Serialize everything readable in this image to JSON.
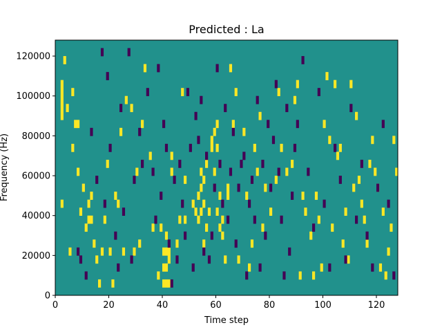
{
  "chart_data": {
    "type": "heatmap",
    "title": "Predicted : La",
    "xlabel": "Time step",
    "ylabel": "Frequency (Hz)",
    "xlim": [
      0,
      128
    ],
    "ylim": [
      0,
      128000
    ],
    "xticks": [
      "0",
      "20",
      "40",
      "60",
      "80",
      "100",
      "120"
    ],
    "yticks": [
      "0",
      "20000",
      "40000",
      "60000",
      "80000",
      "100000",
      "120000"
    ],
    "grid": false,
    "legend": "none",
    "colors": {
      "background": "#21918c",
      "high": "#fde725",
      "low": "#440154"
    },
    "cell_size": {
      "time": 1,
      "freq": 4000
    },
    "yellow_cells": [
      [
        2,
        104
      ],
      [
        2,
        100
      ],
      [
        2,
        96
      ],
      [
        2,
        92
      ],
      [
        2,
        88
      ],
      [
        2,
        44
      ],
      [
        3,
        116
      ],
      [
        4,
        92
      ],
      [
        5,
        20
      ],
      [
        6,
        100
      ],
      [
        6,
        72
      ],
      [
        7,
        84
      ],
      [
        8,
        84
      ],
      [
        8,
        60
      ],
      [
        9,
        40
      ],
      [
        10,
        52
      ],
      [
        11,
        32
      ],
      [
        12,
        36
      ],
      [
        12,
        44
      ],
      [
        13,
        48
      ],
      [
        13,
        36
      ],
      [
        14,
        24
      ],
      [
        15,
        16
      ],
      [
        16,
        4
      ],
      [
        17,
        20
      ],
      [
        18,
        36
      ],
      [
        19,
        64
      ],
      [
        20,
        20
      ],
      [
        21,
        4
      ],
      [
        22,
        48
      ],
      [
        23,
        44
      ],
      [
        24,
        80
      ],
      [
        25,
        20
      ],
      [
        26,
        96
      ],
      [
        28,
        92
      ],
      [
        29,
        20
      ],
      [
        30,
        60
      ],
      [
        31,
        24
      ],
      [
        32,
        84
      ],
      [
        33,
        112
      ],
      [
        35,
        68
      ],
      [
        36,
        32
      ],
      [
        38,
        8
      ],
      [
        39,
        32
      ],
      [
        40,
        4
      ],
      [
        40,
        12
      ],
      [
        40,
        20
      ],
      [
        41,
        4
      ],
      [
        41,
        12
      ],
      [
        41,
        20
      ],
      [
        41,
        28
      ],
      [
        42,
        4
      ],
      [
        42,
        16
      ],
      [
        42,
        20
      ],
      [
        43,
        60
      ],
      [
        43,
        68
      ],
      [
        45,
        24
      ],
      [
        46,
        36
      ],
      [
        47,
        100
      ],
      [
        48,
        56
      ],
      [
        48,
        36
      ],
      [
        51,
        44
      ],
      [
        52,
        40
      ],
      [
        53,
        36
      ],
      [
        53,
        48
      ],
      [
        54,
        40
      ],
      [
        54,
        52
      ],
      [
        54,
        60
      ],
      [
        55,
        24
      ],
      [
        55,
        44
      ],
      [
        55,
        56
      ],
      [
        56,
        32
      ],
      [
        56,
        64
      ],
      [
        57,
        40
      ],
      [
        58,
        72
      ],
      [
        58,
        76
      ],
      [
        59,
        60
      ],
      [
        59,
        80
      ],
      [
        60,
        84
      ],
      [
        60,
        72
      ],
      [
        60,
        40
      ],
      [
        61,
        48
      ],
      [
        61,
        32
      ],
      [
        62,
        28
      ],
      [
        62,
        36
      ],
      [
        63,
        16
      ],
      [
        64,
        48
      ],
      [
        64,
        52
      ],
      [
        65,
        112
      ],
      [
        66,
        84
      ],
      [
        67,
        100
      ],
      [
        68,
        16
      ],
      [
        70,
        80
      ],
      [
        71,
        48
      ],
      [
        72,
        12
      ],
      [
        73,
        24
      ],
      [
        74,
        72
      ],
      [
        75,
        60
      ],
      [
        76,
        88
      ],
      [
        77,
        32
      ],
      [
        78,
        52
      ],
      [
        80,
        40
      ],
      [
        82,
        56
      ],
      [
        83,
        100
      ],
      [
        84,
        72
      ],
      [
        86,
        60
      ],
      [
        88,
        64
      ],
      [
        89,
        96
      ],
      [
        90,
        104
      ],
      [
        91,
        8
      ],
      [
        92,
        48
      ],
      [
        93,
        40
      ],
      [
        95,
        28
      ],
      [
        96,
        8
      ],
      [
        97,
        48
      ],
      [
        98,
        36
      ],
      [
        99,
        12
      ],
      [
        100,
        84
      ],
      [
        101,
        108
      ],
      [
        102,
        76
      ],
      [
        103,
        32
      ],
      [
        104,
        104
      ],
      [
        105,
        68
      ],
      [
        106,
        72
      ],
      [
        107,
        24
      ],
      [
        108,
        40
      ],
      [
        109,
        16
      ],
      [
        110,
        104
      ],
      [
        111,
        52
      ],
      [
        112,
        88
      ],
      [
        113,
        56
      ],
      [
        114,
        44
      ],
      [
        115,
        36
      ],
      [
        116,
        24
      ],
      [
        117,
        64
      ],
      [
        118,
        76
      ],
      [
        119,
        60
      ],
      [
        120,
        52
      ],
      [
        121,
        12
      ],
      [
        122,
        40
      ],
      [
        123,
        8
      ],
      [
        124,
        20
      ],
      [
        125,
        32
      ],
      [
        126,
        76
      ],
      [
        127,
        60
      ]
    ],
    "purple_cells": [
      [
        8,
        20
      ],
      [
        9,
        16
      ],
      [
        11,
        8
      ],
      [
        13,
        80
      ],
      [
        15,
        56
      ],
      [
        17,
        120
      ],
      [
        18,
        44
      ],
      [
        19,
        108
      ],
      [
        20,
        72
      ],
      [
        22,
        28
      ],
      [
        23,
        12
      ],
      [
        24,
        92
      ],
      [
        25,
        40
      ],
      [
        27,
        120
      ],
      [
        28,
        16
      ],
      [
        29,
        56
      ],
      [
        31,
        80
      ],
      [
        32,
        64
      ],
      [
        34,
        100
      ],
      [
        36,
        60
      ],
      [
        37,
        36
      ],
      [
        38,
        112
      ],
      [
        39,
        48
      ],
      [
        40,
        84
      ],
      [
        41,
        72
      ],
      [
        42,
        24
      ],
      [
        43,
        4
      ],
      [
        44,
        56
      ],
      [
        45,
        16
      ],
      [
        46,
        64
      ],
      [
        47,
        44
      ],
      [
        48,
        28
      ],
      [
        49,
        100
      ],
      [
        50,
        72
      ],
      [
        51,
        12
      ],
      [
        52,
        88
      ],
      [
        53,
        76
      ],
      [
        54,
        96
      ],
      [
        55,
        20
      ],
      [
        56,
        68
      ],
      [
        57,
        16
      ],
      [
        58,
        28
      ],
      [
        59,
        52
      ],
      [
        60,
        112
      ],
      [
        61,
        64
      ],
      [
        62,
        44
      ],
      [
        63,
        92
      ],
      [
        64,
        36
      ],
      [
        65,
        60
      ],
      [
        66,
        80
      ],
      [
        67,
        24
      ],
      [
        68,
        52
      ],
      [
        69,
        64
      ],
      [
        70,
        68
      ],
      [
        71,
        8
      ],
      [
        72,
        44
      ],
      [
        73,
        56
      ],
      [
        74,
        36
      ],
      [
        75,
        96
      ],
      [
        76,
        12
      ],
      [
        77,
        64
      ],
      [
        78,
        28
      ],
      [
        79,
        84
      ],
      [
        80,
        52
      ],
      [
        81,
        76
      ],
      [
        82,
        104
      ],
      [
        83,
        60
      ],
      [
        84,
        36
      ],
      [
        85,
        8
      ],
      [
        86,
        92
      ],
      [
        87,
        20
      ],
      [
        88,
        48
      ],
      [
        89,
        72
      ],
      [
        90,
        84
      ],
      [
        92,
        116
      ],
      [
        94,
        60
      ],
      [
        96,
        32
      ],
      [
        98,
        100
      ],
      [
        100,
        44
      ],
      [
        102,
        12
      ],
      [
        104,
        72
      ],
      [
        106,
        56
      ],
      [
        108,
        16
      ],
      [
        110,
        92
      ],
      [
        112,
        36
      ],
      [
        114,
        64
      ],
      [
        116,
        28
      ],
      [
        118,
        12
      ],
      [
        120,
        52
      ],
      [
        122,
        84
      ],
      [
        124,
        44
      ],
      [
        126,
        8
      ]
    ]
  }
}
